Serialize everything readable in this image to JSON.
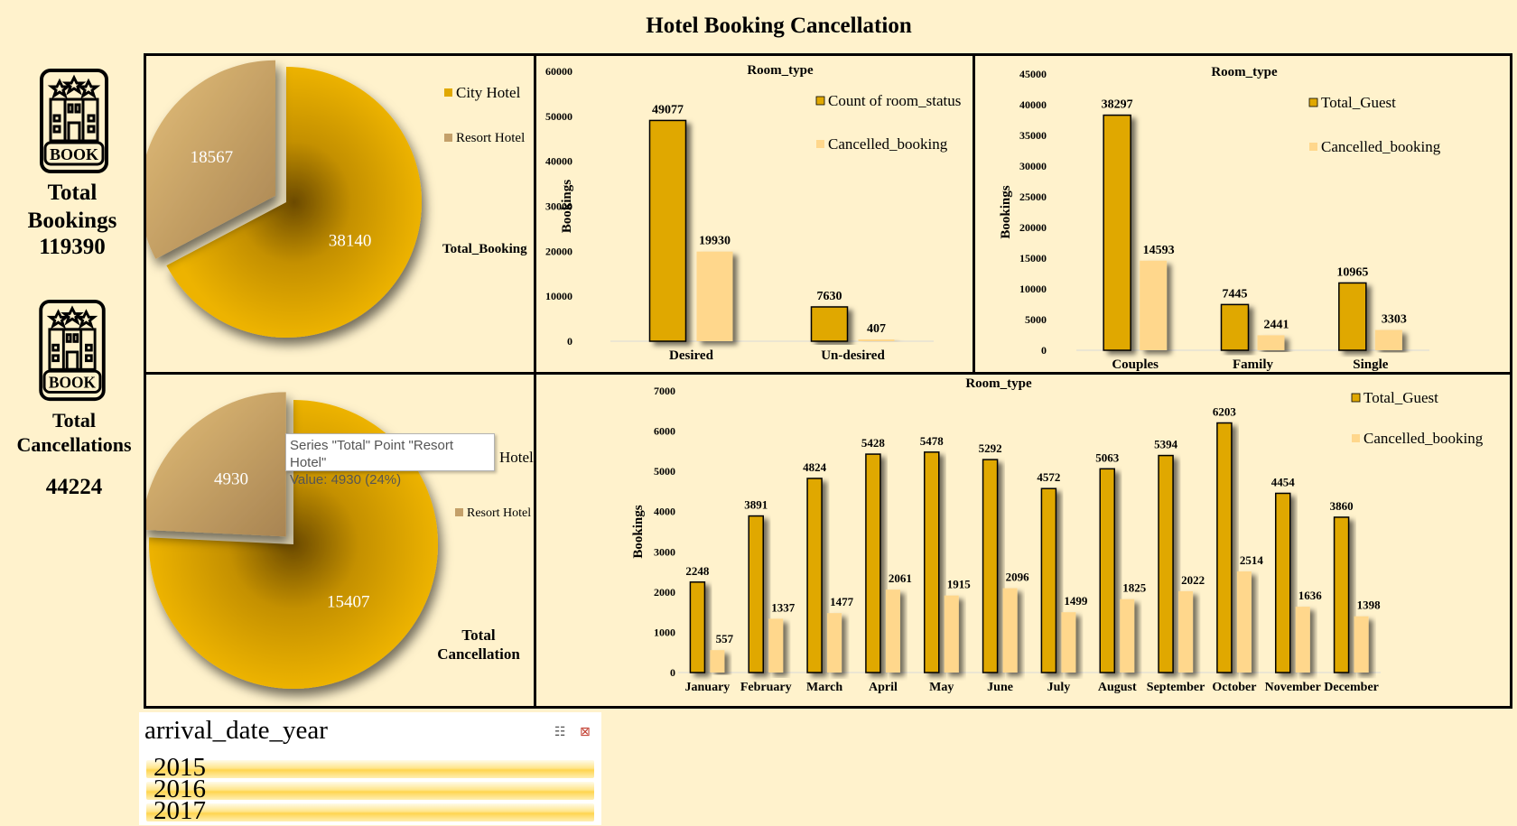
{
  "title": "Hotel Booking Cancellation",
  "kpis": {
    "total_bookings_label": "Total Bookings",
    "total_bookings_value": "119390",
    "total_cancellations_label": "Total Cancellations",
    "total_cancellations_value": "44224",
    "icon_text": "BOOK"
  },
  "colors": {
    "gold": "#e0a800",
    "light": "#ffd78c",
    "tan": "#c4a06a",
    "panel": "#fff2cc"
  },
  "tooltip": {
    "line1": "Series \"Total\" Point \"Resort Hotel\"",
    "line2": "Value: 4930 (24%)"
  },
  "slicer": {
    "title": "arrival_date_year",
    "items": [
      "2015",
      "2016",
      "2017"
    ]
  },
  "chart_data": [
    {
      "id": "pie-bookings",
      "type": "pie",
      "series_name": "Total_Booking",
      "categories": [
        "City Hotel",
        "Resort Hotel"
      ],
      "values": [
        38140,
        18567
      ],
      "legend": [
        "City Hotel",
        "Resort Hotel"
      ]
    },
    {
      "id": "bar-room-status",
      "type": "bar",
      "title": "Room_type",
      "ylabel": "Bookings",
      "categories": [
        "Desired",
        "Un-desired"
      ],
      "ylim": [
        0,
        60000
      ],
      "yticks": [
        0,
        10000,
        20000,
        30000,
        40000,
        50000,
        60000
      ],
      "series": [
        {
          "name": "Count of room_status",
          "values": [
            49077,
            7630
          ]
        },
        {
          "name": "Cancelled_booking",
          "values": [
            19930,
            407
          ]
        }
      ]
    },
    {
      "id": "bar-guest-type",
      "type": "bar",
      "title": "Room_type",
      "ylabel": "Bookings",
      "categories": [
        "Couples",
        "Family",
        "Single"
      ],
      "ylim": [
        0,
        45000
      ],
      "yticks": [
        0,
        5000,
        10000,
        15000,
        20000,
        25000,
        30000,
        35000,
        40000,
        45000
      ],
      "series": [
        {
          "name": "Total_Guest",
          "values": [
            38297,
            7445,
            10965
          ]
        },
        {
          "name": "Cancelled_booking",
          "values": [
            14593,
            2441,
            3303
          ]
        }
      ]
    },
    {
      "id": "pie-cancellations",
      "type": "pie",
      "series_name": "Total Cancellation",
      "categories": [
        "City Hotel",
        "Resort Hotel"
      ],
      "values": [
        15407,
        4930
      ],
      "legend_visible": [
        "Hotel",
        "Resort Hotel"
      ]
    },
    {
      "id": "bar-monthly",
      "type": "bar",
      "title": "Room_type",
      "ylabel": "Bookings",
      "categories": [
        "January",
        "February",
        "March",
        "April",
        "May",
        "June",
        "July",
        "August",
        "September",
        "October",
        "November",
        "December"
      ],
      "ylim": [
        0,
        7000
      ],
      "yticks": [
        0,
        1000,
        2000,
        3000,
        4000,
        5000,
        6000,
        7000
      ],
      "series": [
        {
          "name": "Total_Guest",
          "values": [
            2248,
            3891,
            4824,
            5428,
            5478,
            5292,
            4572,
            5063,
            5394,
            6203,
            4454,
            3860
          ]
        },
        {
          "name": "Cancelled_booking",
          "values": [
            557,
            1337,
            1477,
            2061,
            1915,
            2096,
            1499,
            1825,
            2022,
            2514,
            1636,
            1398
          ]
        }
      ]
    }
  ]
}
